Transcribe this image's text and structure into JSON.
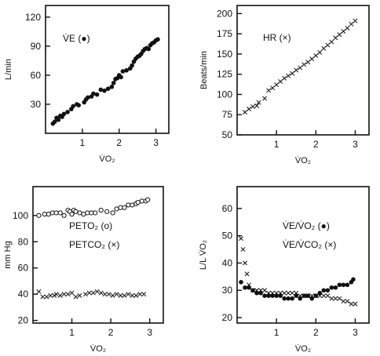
{
  "chart_data": [
    {
      "id": "ve",
      "type": "scatter",
      "xlabel": "V̇O₂",
      "ylabel": "L/min",
      "xlim": [
        0,
        3.35
      ],
      "ylim": [
        0,
        132
      ],
      "xticks": [
        1,
        2,
        3
      ],
      "yticks": [
        30,
        60,
        90,
        120
      ],
      "annotations": [
        "V̇E (●)"
      ],
      "series": [
        {
          "marker": "filled-circle",
          "x": [
            0.2,
            0.25,
            0.3,
            0.35,
            0.4,
            0.45,
            0.5,
            0.6,
            0.7,
            0.75,
            0.85,
            0.9,
            1.05,
            1.1,
            1.15,
            1.25,
            1.3,
            1.4,
            1.5,
            1.6,
            1.7,
            1.8,
            1.85,
            1.9,
            1.95,
            2.0,
            2.05,
            2.1,
            2.2,
            2.3,
            2.35,
            2.4,
            2.45,
            2.5,
            2.55,
            2.6,
            2.65,
            2.7,
            2.75,
            2.8,
            2.85,
            2.9,
            2.95,
            3.0,
            3.05
          ],
          "y": [
            10,
            12,
            16,
            14,
            18,
            17,
            20,
            22,
            25,
            28,
            30,
            29,
            32,
            35,
            37,
            38,
            41,
            40,
            45,
            44,
            46,
            48,
            52,
            56,
            57,
            60,
            58,
            64,
            65,
            67,
            70,
            74,
            77,
            79,
            80,
            82,
            85,
            87,
            88,
            87,
            91,
            93,
            94,
            96,
            97
          ]
        }
      ]
    },
    {
      "id": "hr",
      "type": "scatter",
      "xlabel": "V̇O₂",
      "ylabel": "Beats/min",
      "xlim": [
        0,
        3.35
      ],
      "ylim": [
        50,
        210
      ],
      "xticks": [
        1,
        2,
        3
      ],
      "yticks": [
        50,
        75,
        100,
        125,
        150,
        175,
        200
      ],
      "annotations": [
        "HR (×)"
      ],
      "series": [
        {
          "marker": "cross",
          "x": [
            0.2,
            0.3,
            0.4,
            0.5,
            0.55,
            0.7,
            0.8,
            0.9,
            1.0,
            1.1,
            1.2,
            1.3,
            1.4,
            1.5,
            1.6,
            1.7,
            1.8,
            1.9,
            2.0,
            2.1,
            2.2,
            2.3,
            2.4,
            2.5,
            2.6,
            2.7,
            2.8,
            2.9,
            3.0
          ],
          "y": [
            78,
            82,
            85,
            86,
            90,
            95,
            105,
            108,
            112,
            116,
            120,
            123,
            126,
            130,
            133,
            137,
            140,
            144,
            148,
            152,
            157,
            161,
            165,
            170,
            174,
            178,
            182,
            187,
            191
          ]
        }
      ]
    },
    {
      "id": "pet",
      "type": "scatter",
      "xlabel": "V̇O₂",
      "ylabel": "mm Hg",
      "xlim": [
        0,
        3.35
      ],
      "ylim": [
        18,
        122
      ],
      "xticks": [
        1,
        2,
        3
      ],
      "yticks": [
        20,
        40,
        60,
        80,
        100
      ],
      "annotations": [
        "PETO₂ (o)",
        "PETCO₂ (×)"
      ],
      "series": [
        {
          "name": "PETO₂",
          "marker": "open-circle",
          "x": [
            0.15,
            0.3,
            0.4,
            0.5,
            0.6,
            0.7,
            0.8,
            0.9,
            0.95,
            1.0,
            1.05,
            1.1,
            1.2,
            1.3,
            1.4,
            1.5,
            1.6,
            1.75,
            1.9,
            2.05,
            2.15,
            2.25,
            2.35,
            2.45,
            2.55,
            2.65,
            2.7,
            2.8,
            2.9,
            2.95
          ],
          "y": [
            100,
            101,
            101,
            102,
            102,
            102,
            100,
            104,
            103,
            101,
            104,
            103,
            102,
            101,
            102,
            102,
            102,
            104,
            103,
            102,
            105,
            106,
            106,
            108,
            108,
            109,
            110,
            111,
            111,
            112
          ]
        },
        {
          "name": "PETCO₂",
          "marker": "cross",
          "x": [
            0.15,
            0.25,
            0.35,
            0.45,
            0.55,
            0.6,
            0.7,
            0.8,
            0.9,
            1.0,
            1.1,
            1.2,
            1.35,
            1.45,
            1.55,
            1.65,
            1.75,
            1.85,
            1.95,
            2.05,
            2.15,
            2.25,
            2.35,
            2.45,
            2.55,
            2.65,
            2.75,
            2.85
          ],
          "y": [
            42,
            38,
            38,
            39,
            39,
            40,
            39,
            40,
            40,
            41,
            38,
            39,
            40,
            41,
            41,
            42,
            41,
            40,
            40,
            39,
            40,
            39,
            39,
            40,
            39,
            39,
            40,
            40
          ]
        }
      ]
    },
    {
      "id": "ratios",
      "type": "scatter",
      "xlabel": "V̇O₂",
      "ylabel": "L/L V̇O₂",
      "xlim": [
        0,
        3.35
      ],
      "ylim": [
        18,
        68
      ],
      "xticks": [
        1,
        2,
        3
      ],
      "yticks": [
        20,
        30,
        40,
        50,
        60
      ],
      "annotations": [
        "V̇E/V̇O₂ (●)",
        "V̇E/V̇CO₂ (×)"
      ],
      "series": [
        {
          "name": "V̇E/V̇O₂",
          "marker": "filled-circle",
          "x": [
            0.1,
            0.2,
            0.3,
            0.4,
            0.5,
            0.6,
            0.7,
            0.8,
            0.9,
            1.0,
            1.1,
            1.2,
            1.3,
            1.4,
            1.5,
            1.6,
            1.7,
            1.8,
            1.9,
            2.0,
            2.1,
            2.2,
            2.3,
            2.4,
            2.5,
            2.6,
            2.7,
            2.8,
            2.9,
            2.95
          ],
          "y": [
            33,
            31,
            31,
            30,
            29,
            29,
            28,
            28,
            28,
            28,
            28,
            27,
            27,
            27,
            28,
            27,
            28,
            28,
            27,
            28,
            29,
            30,
            30,
            31,
            31,
            32,
            32,
            32,
            33,
            34
          ]
        },
        {
          "name": "V̇E/V̇CO₂",
          "marker": "cross",
          "x": [
            0.1,
            0.15,
            0.2,
            0.25,
            0.3,
            0.4,
            0.5,
            0.6,
            0.7,
            0.8,
            0.9,
            1.0,
            1.1,
            1.2,
            1.3,
            1.4,
            1.5,
            1.6,
            1.7,
            1.8,
            1.9,
            2.0,
            2.1,
            2.2,
            2.3,
            2.4,
            2.5,
            2.6,
            2.7,
            2.8,
            2.9,
            3.0
          ],
          "y": [
            49,
            45,
            40,
            36,
            32,
            30,
            30,
            30,
            30,
            29,
            29,
            29,
            29,
            29,
            29,
            29,
            29,
            28,
            28,
            28,
            28,
            28,
            28,
            28,
            28,
            27,
            27,
            27,
            26,
            26,
            25,
            25
          ]
        }
      ]
    }
  ]
}
